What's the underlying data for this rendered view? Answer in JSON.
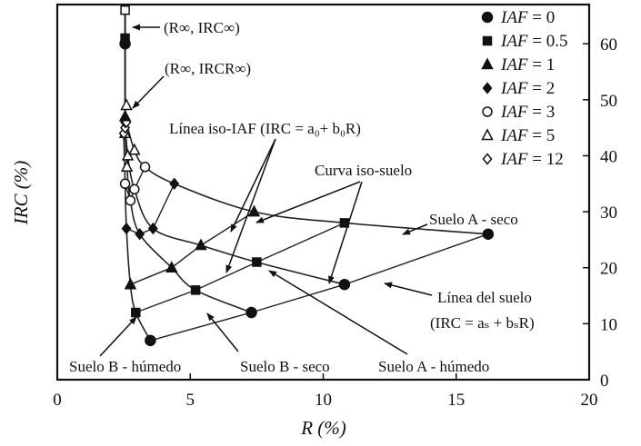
{
  "chart_data": {
    "type": "line",
    "xlabel": "R (%)",
    "ylabel": "IRC (%)",
    "xlim": [
      0,
      20
    ],
    "ylim": [
      0,
      67
    ],
    "x_ticks": [
      0,
      5,
      10,
      15,
      20
    ],
    "y_ticks": [
      0,
      10,
      20,
      30,
      40,
      50,
      60
    ],
    "grid": false,
    "legend_position": "top-right",
    "legend": [
      {
        "label": "IAF = 0",
        "marker": "filled-circle"
      },
      {
        "label": "IAF = 0.5",
        "marker": "filled-square"
      },
      {
        "label": "IAF = 1",
        "marker": "filled-triangle"
      },
      {
        "label": "IAF = 2",
        "marker": "filled-diamond"
      },
      {
        "label": "IAF = 3",
        "marker": "open-circle"
      },
      {
        "label": "IAF = 5",
        "marker": "open-triangle"
      },
      {
        "label": "IAF = 12",
        "marker": "open-diamond"
      }
    ],
    "iso_soil_curves": [
      {
        "name": "Suelo A - seco",
        "points": [
          [
            2.6,
            46
          ],
          [
            2.9,
            41
          ],
          [
            3.3,
            38
          ],
          [
            4.4,
            35
          ],
          [
            7.4,
            30
          ],
          [
            10.8,
            28
          ],
          [
            16.2,
            26
          ]
        ]
      },
      {
        "name": "Suelo A - húmedo",
        "points": [
          [
            2.55,
            46
          ],
          [
            2.65,
            40
          ],
          [
            2.9,
            34
          ],
          [
            3.6,
            27
          ],
          [
            5.4,
            24
          ],
          [
            7.5,
            21
          ],
          [
            10.8,
            17
          ]
        ]
      },
      {
        "name": "Suelo B - seco",
        "points": [
          [
            2.55,
            45
          ],
          [
            2.62,
            38
          ],
          [
            2.75,
            32
          ],
          [
            3.1,
            26
          ],
          [
            4.3,
            20
          ],
          [
            5.2,
            16
          ],
          [
            7.3,
            12
          ]
        ]
      },
      {
        "name": "Suelo B - húmedo",
        "points": [
          [
            2.5,
            44
          ],
          [
            2.55,
            35
          ],
          [
            2.6,
            27
          ],
          [
            2.75,
            17
          ],
          [
            2.95,
            12
          ],
          [
            3.5,
            7
          ]
        ]
      }
    ],
    "iso_iaf_lines": [
      {
        "iaf": 0,
        "points": [
          [
            3.5,
            7
          ],
          [
            7.3,
            12
          ],
          [
            10.8,
            17
          ],
          [
            16.2,
            26
          ]
        ]
      },
      {
        "iaf": 0.5,
        "points": [
          [
            2.95,
            12
          ],
          [
            5.2,
            16
          ],
          [
            7.5,
            21
          ],
          [
            10.8,
            28
          ]
        ]
      },
      {
        "iaf": 1,
        "points": [
          [
            2.75,
            17
          ],
          [
            4.3,
            20
          ],
          [
            5.4,
            24
          ],
          [
            7.4,
            30
          ]
        ]
      },
      {
        "iaf": 2,
        "points": [
          [
            2.6,
            27
          ],
          [
            3.1,
            26
          ],
          [
            3.6,
            27
          ],
          [
            4.4,
            35
          ]
        ]
      },
      {
        "iaf": 3,
        "points": [
          [
            2.55,
            35
          ],
          [
            2.75,
            32
          ],
          [
            2.9,
            34
          ],
          [
            3.3,
            38
          ]
        ]
      },
      {
        "iaf": 5,
        "points": [
          [
            2.55,
            44
          ],
          [
            2.62,
            38
          ],
          [
            2.65,
            40
          ],
          [
            2.9,
            41
          ]
        ]
      },
      {
        "iaf": 12,
        "points": [
          [
            2.5,
            44
          ],
          [
            2.55,
            45
          ],
          [
            2.55,
            46
          ],
          [
            2.6,
            46
          ]
        ]
      }
    ],
    "asymptote": {
      "x": 2.55,
      "y_from": 44,
      "y_to": 66
    },
    "asymptote_markers": [
      {
        "x": 2.55,
        "y": 66,
        "marker": "open-square"
      },
      {
        "x": 2.55,
        "y": 61,
        "marker": "filled-square"
      },
      {
        "x": 2.55,
        "y": 60,
        "marker": "filled-circle"
      },
      {
        "x": 2.6,
        "y": 49,
        "marker": "open-triangle"
      },
      {
        "x": 2.55,
        "y": 47,
        "marker": "filled-triangle"
      }
    ],
    "annotations": {
      "r_inf_irc_inf": "(R∞, IRC∞)",
      "r_inf_ircr_inf": "(R∞, IRCR∞)",
      "linea_iso_iaf": "Línea iso-IAF (IRC = a₀+ b₀R)",
      "curva_iso_suelo": "Curva iso-suelo",
      "suelo_a_seco": "Suelo A - seco",
      "linea_del_suelo_1": "Línea del suelo",
      "linea_del_suelo_2": "(IRC = aₛ + bₛR)",
      "suelo_b_humedo": "Suelo B - húmedo",
      "suelo_b_seco": "Suelo B - seco",
      "suelo_a_humedo": "Suelo A - húmedo"
    }
  }
}
